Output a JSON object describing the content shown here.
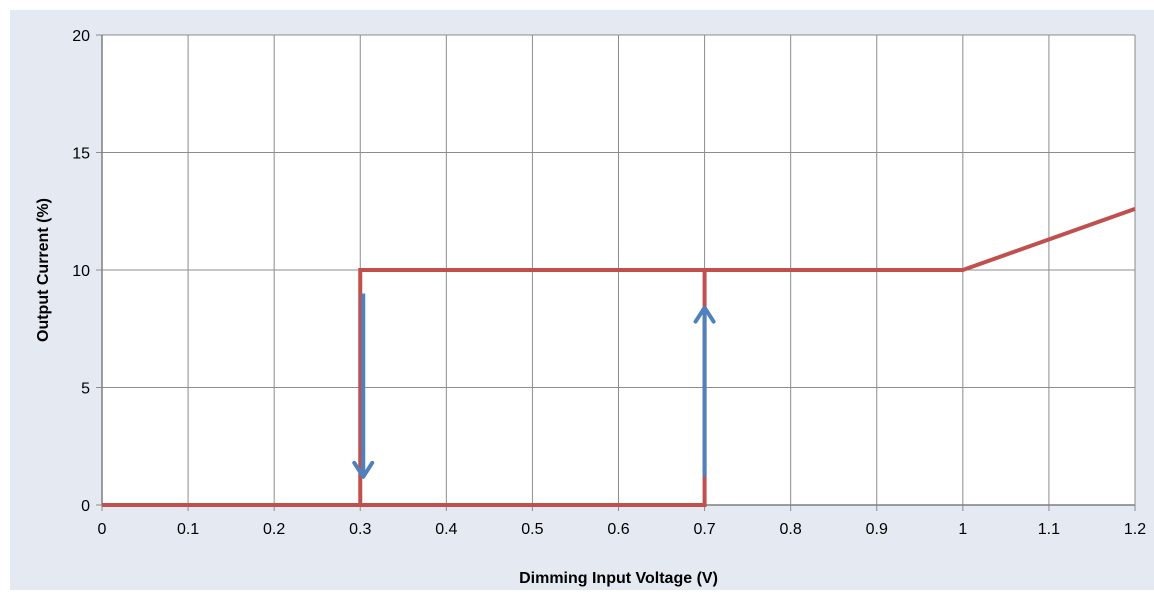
{
  "chart_data": {
    "type": "line",
    "xlabel": "Dimming Input Voltage (V)",
    "ylabel": "Output Current (%)",
    "xlim": [
      0,
      1.2
    ],
    "ylim": [
      0,
      20
    ],
    "x_ticks": [
      "0",
      "0.1",
      "0.2",
      "0.3",
      "0.4",
      "0.5",
      "0.6",
      "0.7",
      "0.8",
      "0.9",
      "1",
      "1.1",
      "1.2"
    ],
    "y_ticks": [
      "0",
      "5",
      "10",
      "15",
      "20"
    ],
    "grid": true,
    "legend": "none",
    "series": [
      {
        "color": "#c0504d",
        "points": [
          [
            0,
            0
          ],
          [
            0.3,
            0
          ],
          [
            0.3,
            10
          ],
          [
            1.0,
            10
          ],
          [
            1.2,
            12.6
          ]
        ]
      },
      {
        "color": "#c0504d",
        "points": [
          [
            0.3,
            0
          ],
          [
            0.7,
            0
          ],
          [
            0.7,
            10
          ]
        ]
      }
    ],
    "annotations": [
      {
        "type": "arrow",
        "direction": "down",
        "color": "#4f81bd",
        "from": [
          0.3,
          9
        ],
        "to": [
          0.3,
          1.2
        ]
      },
      {
        "type": "arrow",
        "direction": "up",
        "color": "#4f81bd",
        "from": [
          0.7,
          1.2
        ],
        "to": [
          0.7,
          8.4
        ]
      }
    ]
  }
}
